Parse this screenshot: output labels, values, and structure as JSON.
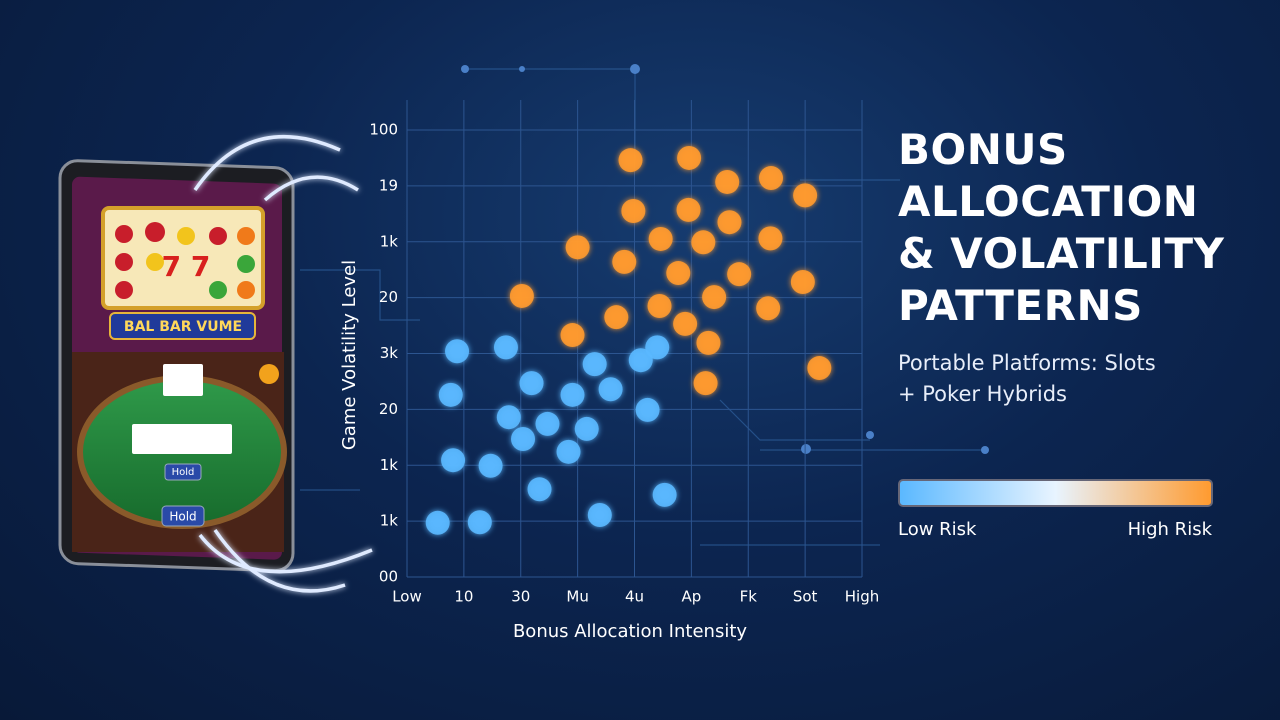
{
  "chart_data": {
    "type": "scatter",
    "title": "BONUS ALLOCATION & VOLATILITY PATTERNS",
    "subtitle": "Portable Platforms: Slots + Poker Hybrids",
    "x_label": "Bonus Allocation Intensity",
    "y_label": "Game Volatility Level",
    "xlim": [
      0,
      8
    ],
    "ylim": [
      0,
      8
    ],
    "xticks": [
      {
        "value": 0,
        "label": "Low"
      },
      {
        "value": 1,
        "label": "10"
      },
      {
        "value": 2,
        "label": "30"
      },
      {
        "value": 3,
        "label": "Mu"
      },
      {
        "value": 4,
        "label": "4u"
      },
      {
        "value": 5,
        "label": "Ap"
      },
      {
        "value": 6,
        "label": "Fk"
      },
      {
        "value": 7,
        "label": "Sot"
      },
      {
        "value": 8,
        "label": "High"
      }
    ],
    "yticks": [
      {
        "value": 0,
        "label": "00"
      },
      {
        "value": 1,
        "label": "1k"
      },
      {
        "value": 2,
        "label": "1k"
      },
      {
        "value": 3,
        "label": "20"
      },
      {
        "value": 4,
        "label": "3k"
      },
      {
        "value": 5,
        "label": "20"
      },
      {
        "value": 6,
        "label": "1k"
      },
      {
        "value": 7,
        "label": "19"
      },
      {
        "value": 8,
        "label": "100"
      }
    ],
    "grid": true,
    "series": [
      {
        "name": "Low Risk",
        "color": "#5ab8ff",
        "x": [
          0.88,
          1.74,
          3.3,
          4.11,
          4.4,
          0.77,
          2.19,
          2.91,
          3.58,
          1.79,
          2.47,
          3.16,
          4.23,
          2.04,
          2.84,
          0.81,
          1.47,
          2.33,
          4.53,
          0.54,
          1.28,
          3.39
        ],
        "values": [
          4.04,
          4.11,
          3.81,
          3.88,
          4.11,
          3.26,
          3.47,
          3.26,
          3.36,
          2.86,
          2.74,
          2.65,
          2.99,
          2.47,
          2.24,
          2.09,
          1.99,
          1.57,
          1.47,
          0.97,
          0.98,
          1.11
        ]
      },
      {
        "name": "High Risk",
        "color": "#ff9a2e",
        "x": [
          3.93,
          4.96,
          5.63,
          6.4,
          7.0,
          3.98,
          4.95,
          5.67,
          3.0,
          4.46,
          5.21,
          6.39,
          3.82,
          4.77,
          5.84,
          6.96,
          2.02,
          5.4,
          6.35,
          3.68,
          4.44,
          4.89,
          2.91,
          5.3,
          7.25,
          5.25
        ],
        "values": [
          7.46,
          7.5,
          7.07,
          7.14,
          6.83,
          6.55,
          6.57,
          6.35,
          5.9,
          6.05,
          5.99,
          6.06,
          5.64,
          5.44,
          5.42,
          5.28,
          5.03,
          5.01,
          4.81,
          4.65,
          4.85,
          4.53,
          4.33,
          4.19,
          3.74,
          3.47
        ]
      }
    ]
  },
  "tablet": {
    "banner": "BAL BAR VUME",
    "button_small": "Hold",
    "button_main": "Hold"
  }
}
